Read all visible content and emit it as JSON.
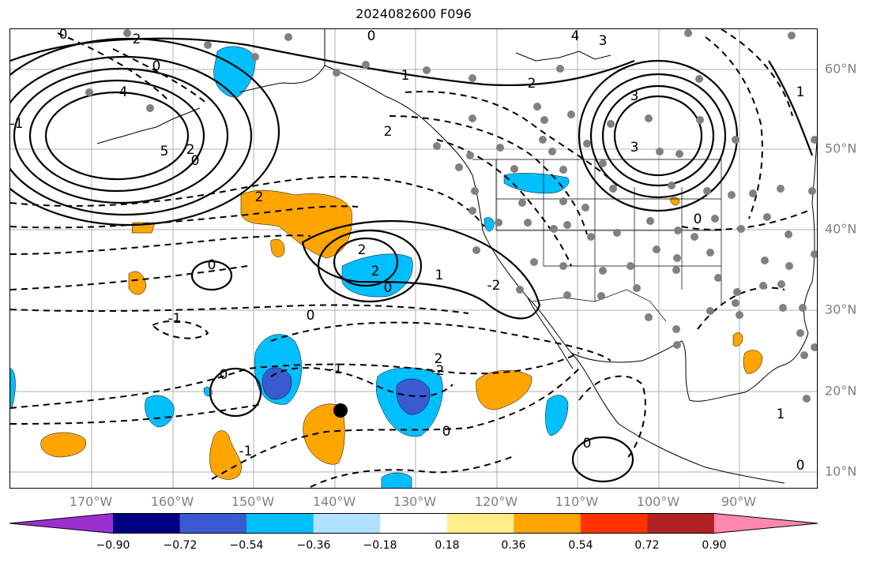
{
  "title": "2024082600 F096",
  "lon_labels": [
    "170°W",
    "160°W",
    "150°W",
    "140°W",
    "130°W",
    "120°W",
    "110°W",
    "100°W",
    "90°W"
  ],
  "lat_labels": [
    "60°N",
    "50°N",
    "40°N",
    "30°N",
    "20°N",
    "10°N"
  ],
  "colorbar": {
    "colors": [
      "#9b30d0",
      "#000080",
      "#3a5bd0",
      "#00bfff",
      "#b0e2ff",
      "#ffffff",
      "#ffec8b",
      "#ffa500",
      "#ff3300",
      "#b22222",
      "#ff88b0"
    ],
    "tick_labels": [
      "−0.90",
      "−0.72",
      "−0.54",
      "−0.36",
      "−0.18",
      "0.18",
      "0.36",
      "0.54",
      "0.72",
      "0.90"
    ]
  },
  "contour_labels": [
    "0",
    "2",
    "4",
    "0",
    "2",
    "1",
    "2",
    "3",
    "4",
    "5",
    "2",
    "0",
    "2",
    "0",
    "-1",
    "2",
    "3",
    "1",
    "-2",
    "0",
    "0",
    "-1",
    "2",
    "0",
    "-1",
    "-2",
    "0",
    "-1",
    "2",
    "0",
    "0",
    "3",
    "1",
    "0",
    "0",
    "1"
  ],
  "marker": {
    "label": "storm-center",
    "color": "#000000"
  }
}
